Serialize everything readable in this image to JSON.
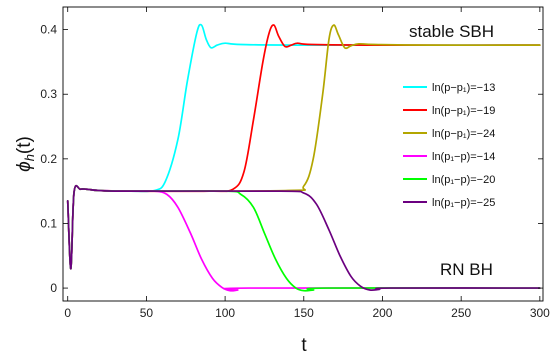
{
  "chart_data": {
    "type": "line",
    "title": "",
    "xlabel": "t",
    "ylabel_main": "ϕ",
    "ylabel_sub": "h",
    "ylabel_tail": "(t)",
    "xlim": [
      -3,
      302
    ],
    "ylim": [
      -0.02,
      0.435
    ],
    "x_ticks": [
      0,
      50,
      100,
      150,
      200,
      250,
      300
    ],
    "y_ticks": [
      0,
      0.1,
      0.2,
      0.3,
      0.4
    ],
    "x_tick_labels": [
      "0",
      "50",
      "100",
      "150",
      "200",
      "250",
      "300"
    ],
    "y_tick_labels": [
      "0",
      "0.1",
      "0.2",
      "0.3",
      "0.4"
    ],
    "grid": false,
    "legend_position": "right",
    "annotations": [
      {
        "text": "stable SBH",
        "position": "top-right"
      },
      {
        "text": "RN BH",
        "position": "bottom-right"
      }
    ],
    "series": [
      {
        "name": "ln(p−p₁)=−13",
        "color": "#00ffff",
        "points": [
          [
            0,
            0.135
          ],
          [
            2,
            0.03
          ],
          [
            4,
            0.148
          ],
          [
            8,
            0.153
          ],
          [
            12,
            0.153
          ],
          [
            20,
            0.151
          ],
          [
            40,
            0.15
          ],
          [
            55,
            0.151
          ],
          [
            62,
            0.165
          ],
          [
            70,
            0.23
          ],
          [
            76,
            0.32
          ],
          [
            82,
            0.395
          ],
          [
            85,
            0.407
          ],
          [
            88,
            0.385
          ],
          [
            91,
            0.372
          ],
          [
            95,
            0.376
          ],
          [
            100,
            0.379
          ],
          [
            110,
            0.377
          ],
          [
            150,
            0.376
          ],
          [
            300,
            0.376
          ]
        ]
      },
      {
        "name": "ln(p−p₁)=−19",
        "color": "#ff0000",
        "points": [
          [
            0,
            0.135
          ],
          [
            2,
            0.03
          ],
          [
            4,
            0.148
          ],
          [
            8,
            0.153
          ],
          [
            12,
            0.153
          ],
          [
            20,
            0.151
          ],
          [
            40,
            0.15
          ],
          [
            90,
            0.15
          ],
          [
            105,
            0.153
          ],
          [
            112,
            0.18
          ],
          [
            118,
            0.26
          ],
          [
            124,
            0.35
          ],
          [
            128,
            0.395
          ],
          [
            131,
            0.407
          ],
          [
            134,
            0.39
          ],
          [
            138,
            0.374
          ],
          [
            142,
            0.376
          ],
          [
            146,
            0.379
          ],
          [
            155,
            0.377
          ],
          [
            200,
            0.376
          ],
          [
            300,
            0.376
          ]
        ]
      },
      {
        "name": "ln(p−p₁)=−24",
        "color": "#b3a600",
        "points": [
          [
            0,
            0.135
          ],
          [
            2,
            0.03
          ],
          [
            4,
            0.148
          ],
          [
            8,
            0.153
          ],
          [
            12,
            0.153
          ],
          [
            20,
            0.151
          ],
          [
            40,
            0.15
          ],
          [
            140,
            0.151
          ],
          [
            150,
            0.158
          ],
          [
            156,
            0.2
          ],
          [
            162,
            0.3
          ],
          [
            166,
            0.385
          ],
          [
            169,
            0.407
          ],
          [
            172,
            0.392
          ],
          [
            176,
            0.372
          ],
          [
            180,
            0.375
          ],
          [
            185,
            0.378
          ],
          [
            195,
            0.377
          ],
          [
            230,
            0.376
          ],
          [
            300,
            0.376
          ]
        ]
      },
      {
        "name": "ln(p₁−p)=−14",
        "color": "#ff00ff",
        "points": [
          [
            0,
            0.135
          ],
          [
            2,
            0.03
          ],
          [
            4,
            0.148
          ],
          [
            8,
            0.153
          ],
          [
            12,
            0.153
          ],
          [
            20,
            0.151
          ],
          [
            40,
            0.15
          ],
          [
            55,
            0.15
          ],
          [
            63,
            0.145
          ],
          [
            70,
            0.125
          ],
          [
            78,
            0.085
          ],
          [
            85,
            0.045
          ],
          [
            92,
            0.015
          ],
          [
            98,
            0.001
          ],
          [
            103,
            -0.004
          ],
          [
            108,
            -0.003
          ],
          [
            115,
            0.0
          ],
          [
            300,
            0.0
          ]
        ]
      },
      {
        "name": "ln(p₁−p)=−20",
        "color": "#00ff00",
        "points": [
          [
            0,
            0.135
          ],
          [
            2,
            0.03
          ],
          [
            4,
            0.148
          ],
          [
            8,
            0.153
          ],
          [
            12,
            0.153
          ],
          [
            20,
            0.151
          ],
          [
            40,
            0.15
          ],
          [
            100,
            0.15
          ],
          [
            110,
            0.145
          ],
          [
            118,
            0.125
          ],
          [
            125,
            0.085
          ],
          [
            132,
            0.045
          ],
          [
            139,
            0.015
          ],
          [
            145,
            0.0
          ],
          [
            150,
            -0.004
          ],
          [
            156,
            -0.003
          ],
          [
            165,
            0.0
          ],
          [
            300,
            0.0
          ]
        ]
      },
      {
        "name": "ln(p₁−p)=−25",
        "color": "#6b0080",
        "points": [
          [
            0,
            0.135
          ],
          [
            2,
            0.03
          ],
          [
            4,
            0.148
          ],
          [
            8,
            0.153
          ],
          [
            12,
            0.153
          ],
          [
            20,
            0.151
          ],
          [
            40,
            0.15
          ],
          [
            135,
            0.15
          ],
          [
            150,
            0.147
          ],
          [
            158,
            0.13
          ],
          [
            166,
            0.09
          ],
          [
            173,
            0.05
          ],
          [
            180,
            0.018
          ],
          [
            186,
            0.003
          ],
          [
            192,
            -0.003
          ],
          [
            198,
            -0.002
          ],
          [
            205,
            0.0
          ],
          [
            300,
            0.0
          ]
        ]
      }
    ]
  }
}
